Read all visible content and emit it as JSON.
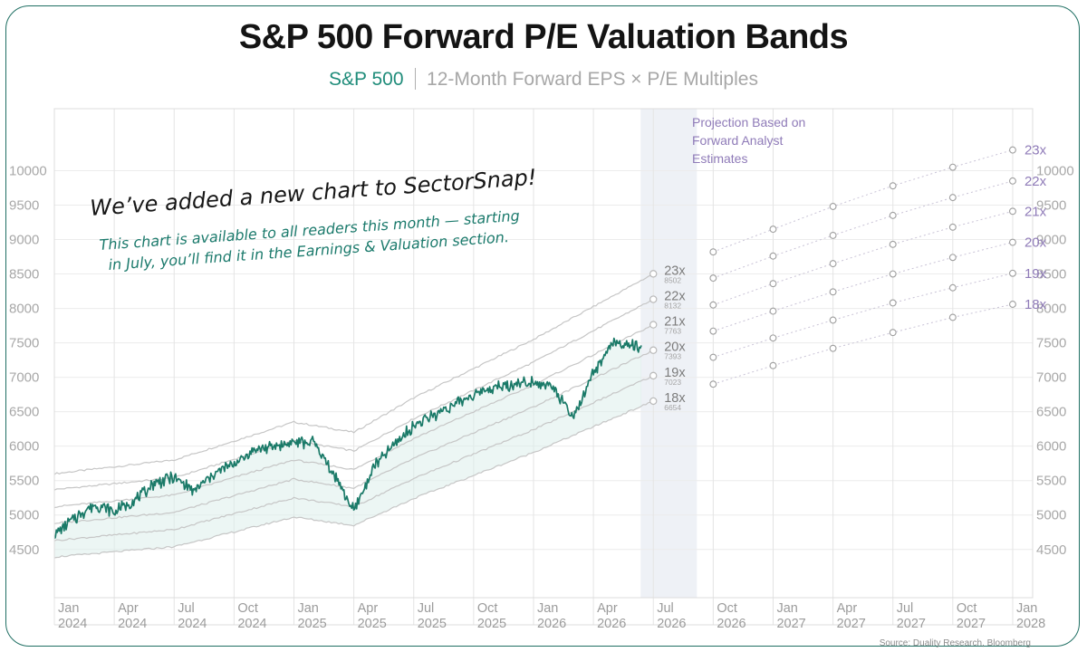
{
  "title": "S&P 500 Forward P/E Valuation Bands",
  "subtitle": {
    "ticker": "S&P 500",
    "description": "12-Month Forward EPS × P/E Multiples"
  },
  "announcement": {
    "headline": "We’ve added a new chart to SectorSnap!",
    "line1": "This chart is available to all readers this month — starting",
    "line2": "in July, you’ll find it in the Earnings & Valuation section."
  },
  "projection_label": [
    "Projection Based on",
    "Forward Analyst",
    "Estimates"
  ],
  "source": "Source: Duality Research, Bloomberg",
  "colors": {
    "price_line": "#1a7a68",
    "band_line": "#c6c6c6",
    "projection": "#8f7bb8",
    "fill": "#dcefeb",
    "shade": "#eef1f6"
  },
  "chart_data": {
    "type": "line",
    "title": "S&P 500 Forward P/E Valuation Bands",
    "ylim": [
      3800,
      10900
    ],
    "yticks": [
      4500,
      5000,
      5500,
      6000,
      6500,
      7000,
      7500,
      8000,
      8500,
      9000,
      9500,
      10000
    ],
    "x_range": [
      "2024-01",
      "2028-02"
    ],
    "xticks": [
      {
        "label": [
          "Jan",
          "2024"
        ],
        "date": "2024-01"
      },
      {
        "label": [
          "Apr",
          "2024"
        ],
        "date": "2024-04"
      },
      {
        "label": [
          "Jul",
          "2024"
        ],
        "date": "2024-07"
      },
      {
        "label": [
          "Oct",
          "2024"
        ],
        "date": "2024-10"
      },
      {
        "label": [
          "Jan",
          "2025"
        ],
        "date": "2025-01"
      },
      {
        "label": [
          "Apr",
          "2025"
        ],
        "date": "2025-04"
      },
      {
        "label": [
          "Jul",
          "2025"
        ],
        "date": "2025-07"
      },
      {
        "label": [
          "Oct",
          "2025"
        ],
        "date": "2025-10"
      },
      {
        "label": [
          "Jan",
          "2026"
        ],
        "date": "2026-01"
      },
      {
        "label": [
          "Apr",
          "2026"
        ],
        "date": "2026-04"
      },
      {
        "label": [
          "Jul",
          "2026"
        ],
        "date": "2026-07"
      },
      {
        "label": [
          "Oct",
          "2026"
        ],
        "date": "2026-10"
      },
      {
        "label": [
          "Jan",
          "2027"
        ],
        "date": "2027-01"
      },
      {
        "label": [
          "Apr",
          "2027"
        ],
        "date": "2027-04"
      },
      {
        "label": [
          "Jul",
          "2027"
        ],
        "date": "2027-07"
      },
      {
        "label": [
          "Oct",
          "2027"
        ],
        "date": "2027-10"
      },
      {
        "label": [
          "Jan",
          "2028"
        ],
        "date": "2028-01"
      }
    ],
    "projection_start": "2026-07",
    "projection_end": "2026-10",
    "price_series": {
      "name": "S&P 500",
      "points": [
        [
          "2024-01",
          4700
        ],
        [
          "2024-02",
          4950
        ],
        [
          "2024-03",
          5150
        ],
        [
          "2024-04",
          5050
        ],
        [
          "2024-05",
          5200
        ],
        [
          "2024-06",
          5450
        ],
        [
          "2024-07",
          5550
        ],
        [
          "2024-08",
          5350
        ],
        [
          "2024-09",
          5600
        ],
        [
          "2024-10",
          5750
        ],
        [
          "2024-11",
          5950
        ],
        [
          "2024-12",
          6000
        ],
        [
          "2025-01",
          6050
        ],
        [
          "2025-02",
          6050
        ],
        [
          "2025-03",
          5600
        ],
        [
          "2025-04",
          5050
        ],
        [
          "2025-05",
          5700
        ],
        [
          "2025-06",
          6000
        ],
        [
          "2025-07",
          6300
        ],
        [
          "2025-08",
          6450
        ],
        [
          "2025-09",
          6600
        ],
        [
          "2025-10",
          6750
        ],
        [
          "2025-11",
          6850
        ],
        [
          "2025-12",
          6900
        ],
        [
          "2026-01",
          6950
        ],
        [
          "2026-02",
          6850
        ],
        [
          "2026-03",
          6400
        ],
        [
          "2026-04",
          7050
        ],
        [
          "2026-05",
          7500
        ],
        [
          "2026-06",
          7450
        ]
      ]
    },
    "bands": [
      {
        "name": "23x",
        "current": "8502",
        "points": [
          [
            "2024-01",
            5600
          ],
          [
            "2024-07",
            5800
          ],
          [
            "2025-01",
            6350
          ],
          [
            "2025-04",
            6200
          ],
          [
            "2025-07",
            6700
          ],
          [
            "2026-01",
            7550
          ],
          [
            "2026-07",
            8502
          ]
        ],
        "projection": [
          [
            "2026-10",
            8820
          ],
          [
            "2027-01",
            9150
          ],
          [
            "2027-04",
            9480
          ],
          [
            "2027-07",
            9780
          ],
          [
            "2027-10",
            10050
          ],
          [
            "2028-01",
            10300
          ]
        ]
      },
      {
        "name": "22x",
        "current": "8132",
        "points": [
          [
            "2024-01",
            5370
          ],
          [
            "2024-07",
            5540
          ],
          [
            "2025-01",
            6080
          ],
          [
            "2025-04",
            5930
          ],
          [
            "2025-07",
            6400
          ],
          [
            "2026-01",
            7220
          ],
          [
            "2026-07",
            8132
          ]
        ],
        "projection": [
          [
            "2026-10",
            8440
          ],
          [
            "2027-01",
            8760
          ],
          [
            "2027-04",
            9060
          ],
          [
            "2027-07",
            9350
          ],
          [
            "2027-10",
            9610
          ],
          [
            "2028-01",
            9850
          ]
        ]
      },
      {
        "name": "21x",
        "current": "7763",
        "points": [
          [
            "2024-01",
            5120
          ],
          [
            "2024-07",
            5290
          ],
          [
            "2025-01",
            5800
          ],
          [
            "2025-04",
            5660
          ],
          [
            "2025-07",
            6110
          ],
          [
            "2026-01",
            6890
          ],
          [
            "2026-07",
            7763
          ]
        ],
        "projection": [
          [
            "2026-10",
            8050
          ],
          [
            "2027-01",
            8360
          ],
          [
            "2027-04",
            8650
          ],
          [
            "2027-07",
            8930
          ],
          [
            "2027-10",
            9180
          ],
          [
            "2028-01",
            9410
          ]
        ]
      },
      {
        "name": "20x",
        "current": "7393",
        "points": [
          [
            "2024-01",
            4880
          ],
          [
            "2024-07",
            5040
          ],
          [
            "2025-01",
            5520
          ],
          [
            "2025-04",
            5390
          ],
          [
            "2025-07",
            5820
          ],
          [
            "2026-01",
            6570
          ],
          [
            "2026-07",
            7393
          ]
        ],
        "projection": [
          [
            "2026-10",
            7670
          ],
          [
            "2027-01",
            7960
          ],
          [
            "2027-04",
            8240
          ],
          [
            "2027-07",
            8500
          ],
          [
            "2027-10",
            8740
          ],
          [
            "2028-01",
            8960
          ]
        ]
      },
      {
        "name": "19x",
        "current": "7023",
        "points": [
          [
            "2024-01",
            4630
          ],
          [
            "2024-07",
            4790
          ],
          [
            "2025-01",
            5250
          ],
          [
            "2025-04",
            5120
          ],
          [
            "2025-07",
            5530
          ],
          [
            "2026-01",
            6240
          ],
          [
            "2026-07",
            7023
          ]
        ],
        "projection": [
          [
            "2026-10",
            7290
          ],
          [
            "2027-01",
            7570
          ],
          [
            "2027-04",
            7830
          ],
          [
            "2027-07",
            8080
          ],
          [
            "2027-10",
            8300
          ],
          [
            "2028-01",
            8510
          ]
        ]
      },
      {
        "name": "18x",
        "current": "6654",
        "points": [
          [
            "2024-01",
            4390
          ],
          [
            "2024-07",
            4540
          ],
          [
            "2025-01",
            4970
          ],
          [
            "2025-04",
            4850
          ],
          [
            "2025-07",
            5240
          ],
          [
            "2026-01",
            5910
          ],
          [
            "2026-07",
            6654
          ]
        ],
        "projection": [
          [
            "2026-10",
            6900
          ],
          [
            "2027-01",
            7170
          ],
          [
            "2027-04",
            7420
          ],
          [
            "2027-07",
            7650
          ],
          [
            "2027-10",
            7870
          ],
          [
            "2028-01",
            8060
          ]
        ]
      }
    ],
    "grid": true,
    "legend": "none"
  }
}
